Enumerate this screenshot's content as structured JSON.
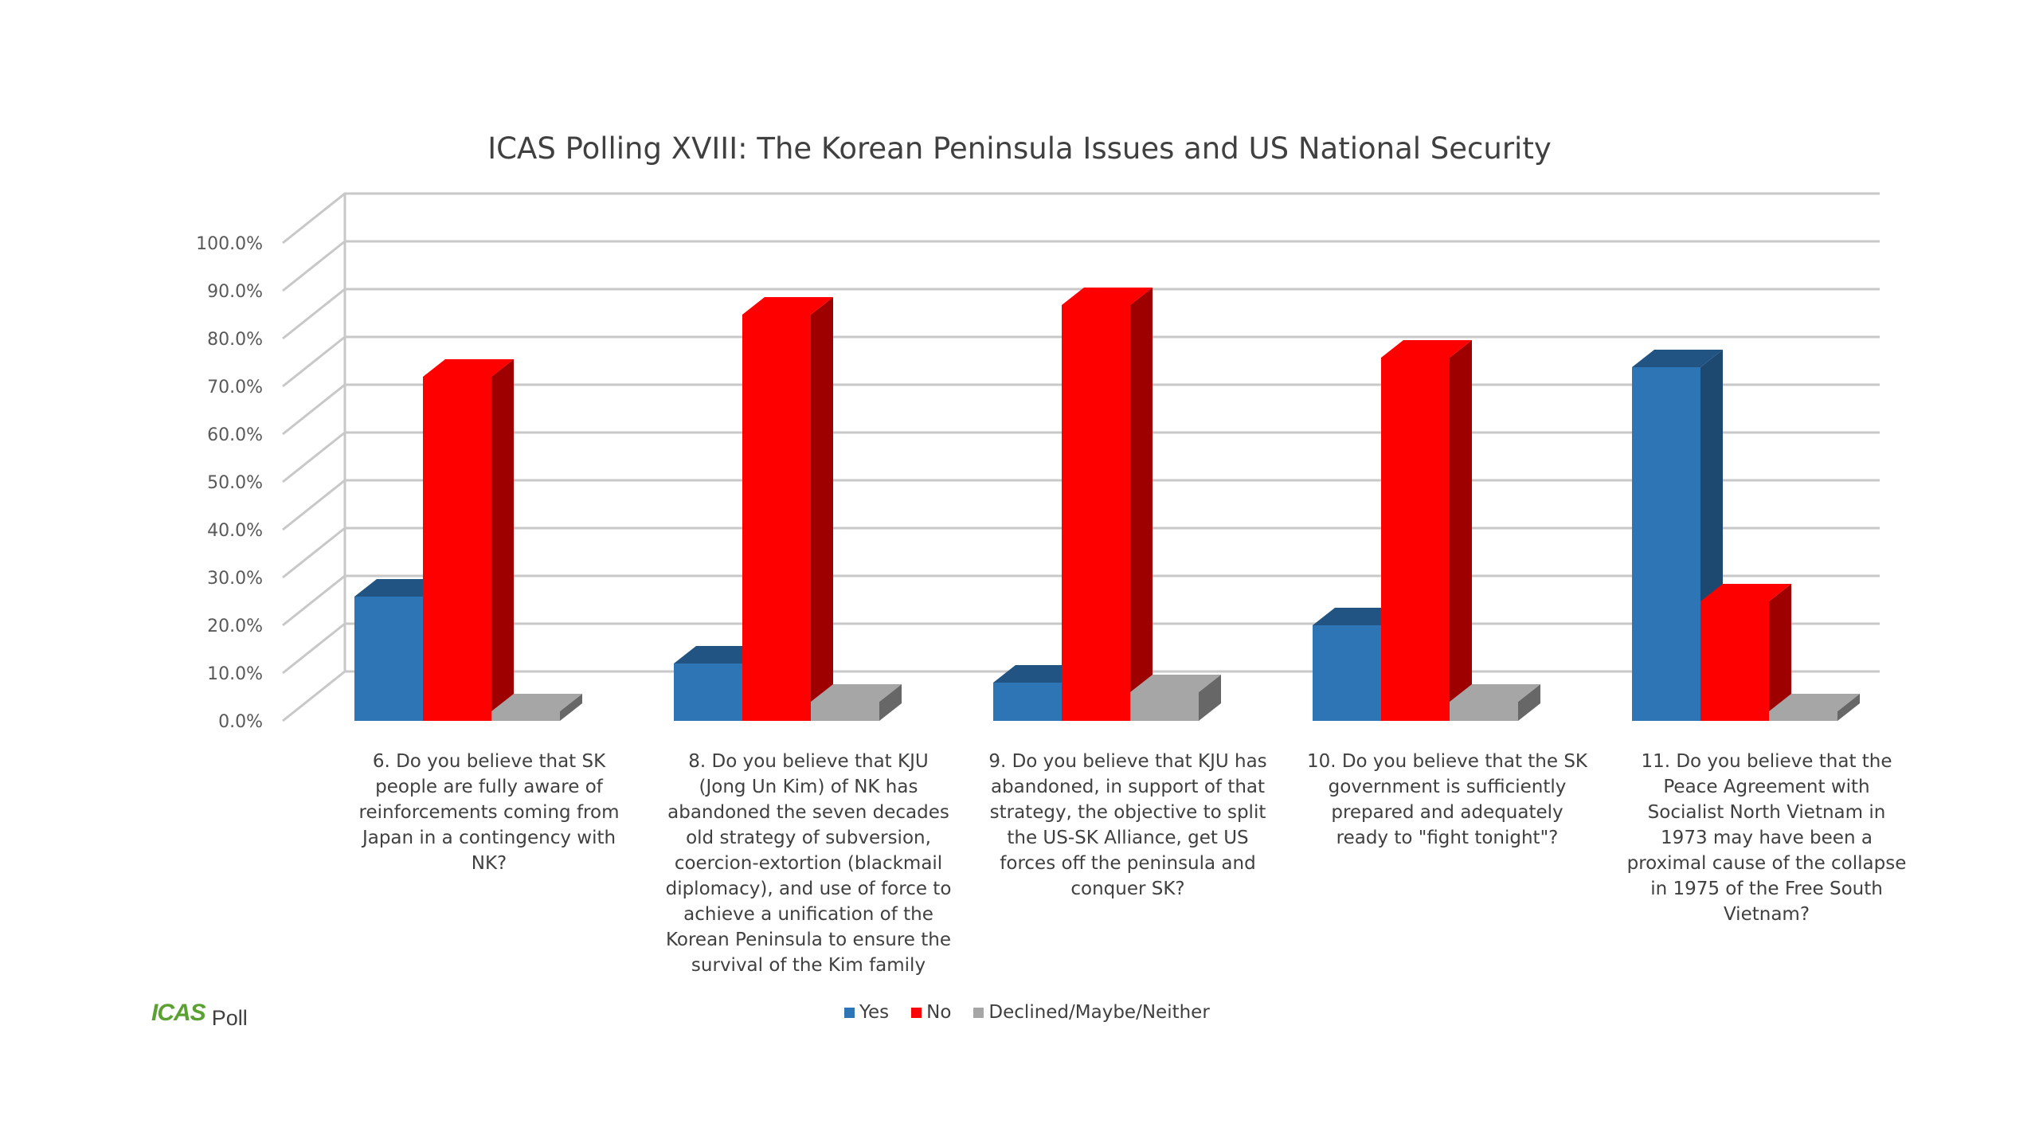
{
  "chart_data": {
    "type": "bar",
    "title": "ICAS Polling XVIII: The Korean Peninsula Issues and US National Security",
    "categories": [
      "6.        Do you believe that SK people are fully aware of reinforcements coming from Japan in a contingency with NK?",
      "8. Do you believe that KJU (Jong Un Kim) of NK has abandoned the seven decades old strategy of subversion, coercion-extortion (blackmail diplomacy), and use of force to achieve a unification of the Korean Peninsula to ensure the survival of the Kim family",
      "9.        Do you believe that KJU has abandoned, in support of that strategy, the objective to split the US-SK Alliance, get US forces off the peninsula and conquer SK?",
      "10.        Do you believe that the SK government is sufficiently prepared and adequately ready to \"fight tonight\"?",
      "11.        Do you believe that the Peace Agreement with Socialist North Vietnam in 1973 may have been a proximal cause of the collapse in 1975 of the Free South Vietnam?"
    ],
    "series": [
      {
        "name": "Yes",
        "values": [
          26,
          12,
          8,
          20,
          74
        ],
        "color": "#2e75b6"
      },
      {
        "name": "No",
        "values": [
          72,
          85,
          87,
          76,
          25
        ],
        "color": "#ff0000"
      },
      {
        "name": "Declined/Maybe/Neither",
        "values": [
          2,
          4,
          6,
          4,
          2
        ],
        "color": "#a6a6a6"
      }
    ],
    "ylim": [
      0,
      100
    ],
    "yticks": [
      "0.0%",
      "10.0%",
      "20.0%",
      "30.0%",
      "40.0%",
      "50.0%",
      "60.0%",
      "70.0%",
      "80.0%",
      "90.0%",
      "100.0%"
    ],
    "grid": true,
    "legend_position": "bottom",
    "style": "3d-column"
  },
  "branding": {
    "logo": "ICAS",
    "label": "Poll"
  }
}
